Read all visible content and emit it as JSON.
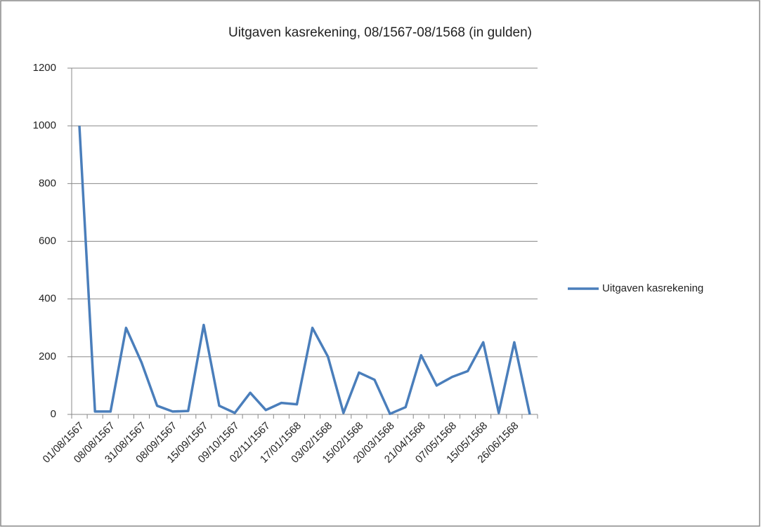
{
  "chart_data": {
    "type": "line",
    "title": "Uitgaven kasrekening, 08/1567-08/1568 (in gulden)",
    "categories": [
      "01/08/1567",
      null,
      "08/08/1567",
      null,
      "31/08/1567",
      null,
      "08/09/1567",
      null,
      "15/09/1567",
      null,
      "09/10/1567",
      null,
      "02/11/1567",
      null,
      "17/01/1568",
      null,
      "03/02/1568",
      null,
      "15/02/1568",
      null,
      "20/03/1568",
      null,
      "21/04/1568",
      null,
      "07/05/1568",
      null,
      "15/05/1568",
      null,
      "26/06/1568",
      null
    ],
    "series": [
      {
        "name": "Uitgaven kasrekening",
        "color": "#4a7ebb",
        "values": [
          1000,
          10,
          10,
          300,
          180,
          30,
          10,
          12,
          310,
          30,
          5,
          75,
          15,
          40,
          35,
          300,
          200,
          5,
          145,
          120,
          2,
          25,
          205,
          100,
          130,
          150,
          250,
          5,
          250,
          0
        ]
      }
    ],
    "ylim": [
      0,
      1200
    ],
    "yticks": [
      0,
      200,
      400,
      600,
      800,
      1000,
      1200
    ],
    "grid": true,
    "legend": "right"
  }
}
